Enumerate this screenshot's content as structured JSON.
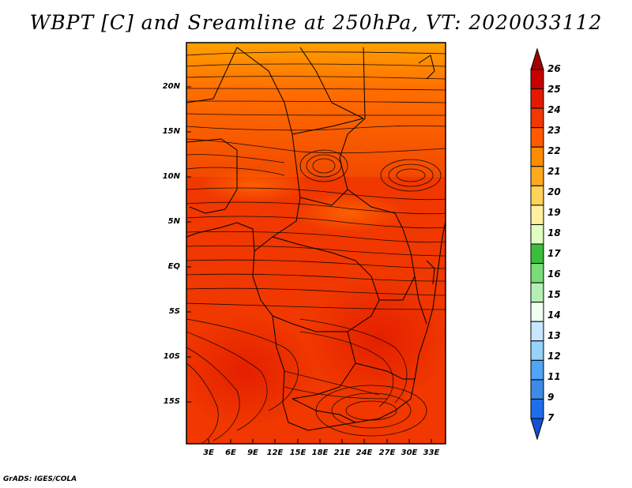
{
  "title": "WBPT [C] and Sreamline at 250hPa, VT: 2020033112",
  "credit": "GrADS: IGES/COLA",
  "lat_labels": [
    "20N",
    "15N",
    "10N",
    "5N",
    "EQ",
    "5S",
    "10S",
    "15S"
  ],
  "lon_labels": [
    "3E",
    "6E",
    "9E",
    "12E",
    "15E",
    "18E",
    "21E",
    "24E",
    "27E",
    "30E",
    "33E"
  ],
  "colorbar": {
    "labels": [
      "26",
      "25",
      "24",
      "23",
      "22",
      "21",
      "20",
      "19",
      "18",
      "17",
      "16",
      "15",
      "14",
      "13",
      "12",
      "11",
      "9",
      "7"
    ],
    "colors": [
      "#a50000",
      "#c80000",
      "#e21b00",
      "#f03800",
      "#ff5a00",
      "#ff8c00",
      "#ffaa1e",
      "#ffd25a",
      "#fff0a0",
      "#e0ffc0",
      "#3cbe3c",
      "#78dc78",
      "#b4f0b4",
      "#f0fff0",
      "#c8e6ff",
      "#96d2fa",
      "#50a5f5",
      "#3c8ce6",
      "#1e6eeb",
      "#1450d2"
    ]
  },
  "map": {
    "field_colors": {
      "dominant": "#f03800",
      "warmer": "#e21b00",
      "cooler": "#ff5a00",
      "north_band": "#ff8c00"
    }
  }
}
